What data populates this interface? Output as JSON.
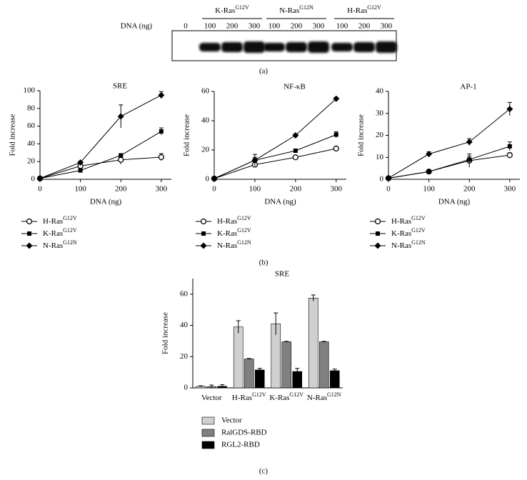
{
  "panels": [
    "(a)",
    "(b)",
    "(c)"
  ],
  "blot": {
    "x_label": "DNA (ng)",
    "zero": "0",
    "groups": [
      {
        "name": "K-Ras",
        "sup": "G12V",
        "lanes": [
          "100",
          "200",
          "300"
        ]
      },
      {
        "name": "N-Ras",
        "sup": "G12N",
        "lanes": [
          "100",
          "200",
          "300"
        ]
      },
      {
        "name": "H-Ras",
        "sup": "G12V",
        "lanes": [
          "100",
          "200",
          "300"
        ]
      }
    ]
  },
  "chart_data": [
    {
      "type": "line",
      "title": "SRE",
      "xlabel": "DNA (ng)",
      "ylabel": "Fold increase",
      "x": [
        0,
        100,
        200,
        300
      ],
      "xlim": [
        0,
        325
      ],
      "xticks": [
        0,
        100,
        200,
        300
      ],
      "ylim": [
        0,
        100
      ],
      "yticks": [
        0,
        20,
        40,
        60,
        80,
        100
      ],
      "legend": "bottom",
      "series": [
        {
          "name": "H-Ras",
          "sup": "G12V",
          "color": "#000000",
          "marker": "circle-open",
          "values": [
            1,
            15,
            22,
            25
          ],
          "errors": [
            0,
            2,
            5,
            4
          ]
        },
        {
          "name": "K-Ras",
          "sup": "G12V",
          "color": "#000000",
          "marker": "square",
          "values": [
            1,
            10,
            27,
            54
          ],
          "errors": [
            0,
            1,
            2,
            4
          ]
        },
        {
          "name": "N-Ras",
          "sup": "G12N",
          "color": "#000000",
          "marker": "diamond",
          "values": [
            1,
            19,
            71,
            95
          ],
          "errors": [
            0,
            1,
            13,
            4
          ]
        }
      ]
    },
    {
      "type": "line",
      "title": "NF-κB",
      "xlabel": "DNA (ng)",
      "ylabel": "Fold increase",
      "x": [
        0,
        100,
        200,
        300
      ],
      "xlim": [
        0,
        325
      ],
      "xticks": [
        0,
        100,
        200,
        300
      ],
      "ylim": [
        0,
        60
      ],
      "yticks": [
        0,
        20,
        40,
        60
      ],
      "legend": "bottom",
      "series": [
        {
          "name": "H-Ras",
          "sup": "G12V",
          "color": "#000000",
          "marker": "circle-open",
          "values": [
            0.5,
            10,
            15,
            21
          ],
          "errors": [
            0,
            2,
            1,
            1
          ]
        },
        {
          "name": "K-Ras",
          "sup": "G12V",
          "color": "#000000",
          "marker": "square",
          "values": [
            0.5,
            13,
            19.5,
            30.5
          ],
          "errors": [
            0,
            2,
            1,
            2
          ]
        },
        {
          "name": "N-Ras",
          "sup": "G12N",
          "color": "#000000",
          "marker": "diamond",
          "values": [
            0.5,
            13,
            30,
            55
          ],
          "errors": [
            0,
            4,
            1,
            1
          ]
        }
      ]
    },
    {
      "type": "line",
      "title": "AP-1",
      "xlabel": "DNA (ng)",
      "ylabel": "Fold increase",
      "x": [
        0,
        100,
        200,
        300
      ],
      "xlim": [
        0,
        325
      ],
      "xticks": [
        0,
        100,
        200,
        300
      ],
      "ylim": [
        0,
        40
      ],
      "yticks": [
        0,
        10,
        20,
        30,
        40
      ],
      "legend": "bottom",
      "series": [
        {
          "name": "H-Ras",
          "sup": "G12V",
          "color": "#000000",
          "marker": "circle-open",
          "values": [
            0.5,
            3.5,
            8.5,
            11
          ],
          "errors": [
            0,
            0.5,
            3,
            1
          ]
        },
        {
          "name": "K-Ras",
          "sup": "G12V",
          "color": "#000000",
          "marker": "square",
          "values": [
            0.5,
            3.5,
            9,
            15
          ],
          "errors": [
            0,
            0.5,
            1.5,
            2
          ]
        },
        {
          "name": "N-Ras",
          "sup": "G12N",
          "color": "#000000",
          "marker": "diamond",
          "values": [
            0.5,
            11.5,
            17,
            32
          ],
          "errors": [
            0,
            1,
            1.5,
            3
          ]
        }
      ]
    },
    {
      "type": "bar",
      "title": "SRE",
      "ylabel": "Fold increase",
      "categories": [
        "Vector",
        "H-Ras",
        "K-Ras",
        "N-Ras"
      ],
      "category_sups": [
        null,
        "G12V",
        "G12V",
        "G12N"
      ],
      "ylim": [
        0,
        70
      ],
      "yticks": [
        0,
        20,
        40,
        60
      ],
      "legend": "bottom",
      "series": [
        {
          "name": "Vector",
          "color": "#d0d0d0",
          "values": [
            1,
            39,
            41,
            57.5
          ],
          "errors": [
            0.3,
            4,
            7,
            2
          ]
        },
        {
          "name": "RalGDS-RBD",
          "color": "#808080",
          "values": [
            0.8,
            18.5,
            29.5,
            29.5
          ],
          "errors": [
            1,
            0.3,
            0.3,
            0.3
          ]
        },
        {
          "name": "RGL2-RBD",
          "color": "#000000",
          "values": [
            1,
            11.5,
            10.5,
            11
          ],
          "errors": [
            1,
            1,
            2,
            1
          ]
        }
      ]
    }
  ]
}
